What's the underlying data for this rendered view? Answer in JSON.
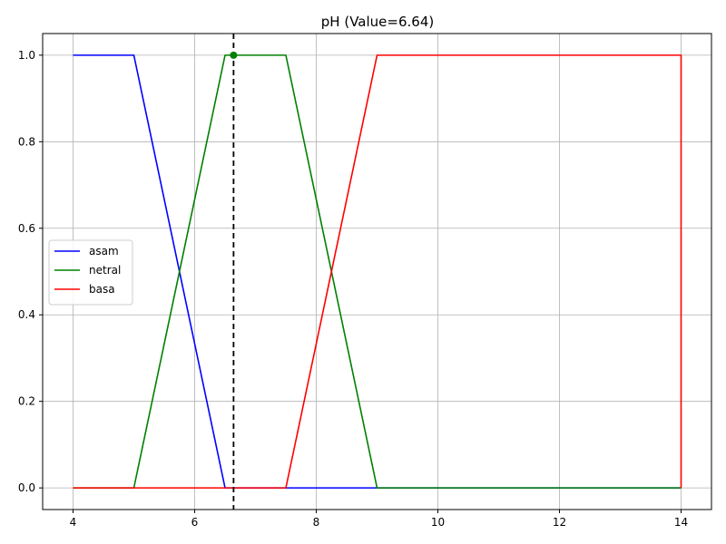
{
  "chart_data": {
    "type": "line",
    "title": "pH (Value=6.64)",
    "xlabel": "",
    "ylabel": "",
    "xlim": [
      3.5,
      14.5
    ],
    "ylim": [
      -0.05,
      1.05
    ],
    "x_ticks": [
      4,
      6,
      8,
      10,
      12,
      14
    ],
    "x_tick_labels": [
      "4",
      "6",
      "8",
      "10",
      "12",
      "14"
    ],
    "y_ticks": [
      0.0,
      0.2,
      0.4,
      0.6,
      0.8,
      1.0
    ],
    "y_tick_labels": [
      "0.0",
      "0.2",
      "0.4",
      "0.6",
      "0.8",
      "1.0"
    ],
    "grid": true,
    "legend_position": "center-left",
    "series": [
      {
        "name": "asam",
        "color": "#0000ff",
        "x": [
          4,
          5,
          6.5,
          14
        ],
        "y": [
          1,
          1,
          0,
          0
        ]
      },
      {
        "name": "netral",
        "color": "#008000",
        "x": [
          4,
          5,
          6.5,
          7.5,
          9,
          14
        ],
        "y": [
          0,
          0,
          1,
          1,
          0,
          0
        ]
      },
      {
        "name": "basa",
        "color": "#ff0000",
        "x": [
          4,
          7.5,
          9,
          14,
          14
        ],
        "y": [
          0,
          0,
          1,
          1,
          0
        ]
      }
    ],
    "marker_line": {
      "x": 6.64,
      "color": "#000000",
      "style": "dashed"
    },
    "marker_point": {
      "x": 6.64,
      "y": 1.0,
      "color": "#008000"
    }
  }
}
